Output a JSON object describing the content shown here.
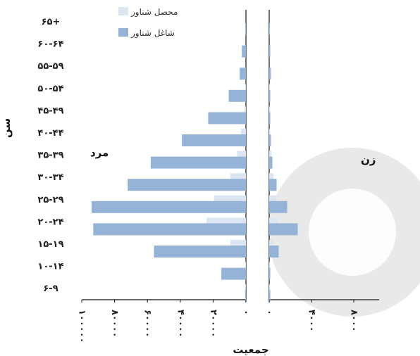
{
  "chart_data": {
    "type": "bar",
    "orientation": "horizontal",
    "layout": "population-pyramid",
    "ylabel": "سن",
    "xlabel": "جمعیت",
    "categories": [
      "۶-۹",
      "۱۰-۱۴",
      "۱۵-۱۹",
      "۲۰-۲۴",
      "۲۵-۲۹",
      "۳۰-۳۴",
      "۳۵-۳۹",
      "۴۰-۴۴",
      "۴۵-۴۹",
      "۵۰-۵۴",
      "۵۵-۵۹",
      "۶۰-۶۴",
      "۶۵+"
    ],
    "legend": [
      "محصل شناور",
      "شاغل شناور"
    ],
    "legend_position": "top",
    "panels": [
      {
        "label": "مرد",
        "xlim": [
          0,
          100000
        ],
        "xticks": [
          0,
          20000,
          40000,
          60000,
          80000,
          100000
        ],
        "tick_labels": [
          "۰",
          "۲۰۰۰۰",
          "۴۰۰۰۰",
          "۶۰۰۰۰",
          "۸۰۰۰۰",
          "۱۰۰۰۰۰"
        ],
        "series": [
          {
            "name": "محصل شناور",
            "values": [
              200,
              500,
              9500,
              24000,
              19500,
              9500,
              5500,
              3000,
              1000,
              500,
              0,
              0,
              0
            ]
          },
          {
            "name": "شاغل شناور",
            "values": [
              500,
              15000,
              56000,
              93000,
              94000,
              72000,
              58000,
              39000,
              23000,
              10500,
              3800,
              2500,
              400
            ]
          }
        ]
      },
      {
        "label": "زن",
        "xlim": [
          0,
          10000
        ],
        "xticks": [
          0,
          4000,
          8000
        ],
        "tick_labels": [
          "۰",
          "۴۰۰۰",
          "۸۰۰۰"
        ],
        "series": [
          {
            "name": "محصل شناور",
            "values": [
              50,
              100,
              400,
              800,
              700,
              400,
              200,
              100,
              100,
              50,
              0,
              0,
              0
            ]
          },
          {
            "name": "شاغل شناور",
            "values": [
              100,
              100,
              900,
              2700,
              1700,
              700,
              300,
              150,
              100,
              100,
              150,
              100,
              50
            ]
          }
        ]
      }
    ]
  }
}
